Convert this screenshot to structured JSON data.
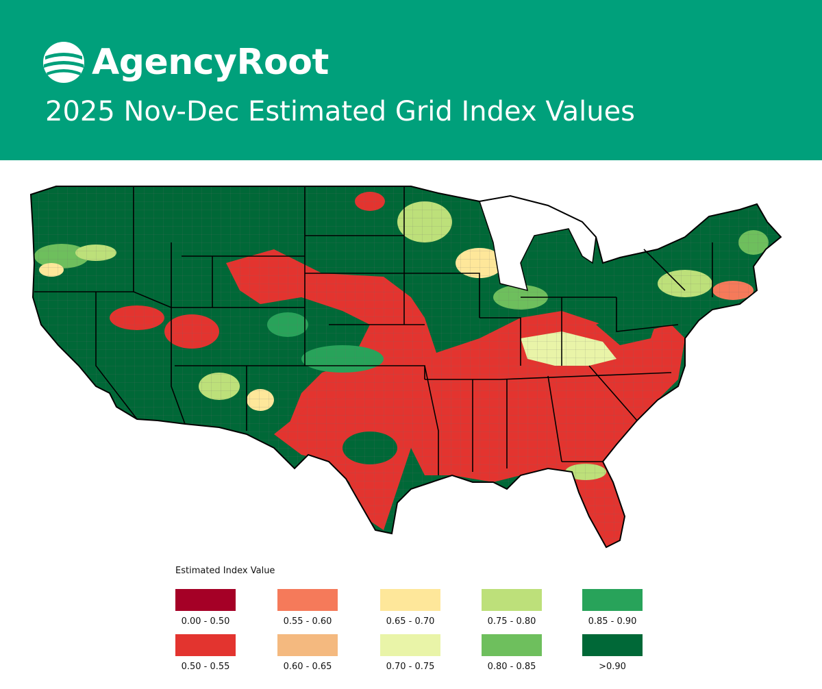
{
  "header": {
    "brand": "AgencyRoot",
    "title": "2025 Nov-Dec Estimated Grid Index Values",
    "brand_color": "#00a07b"
  },
  "map": {
    "region": "contiguous-united-states",
    "boundaries": [
      "state-borders",
      "county-borders"
    ],
    "predominant_low_index_areas": [
      "Texas",
      "Oklahoma",
      "Kansas",
      "Arkansas",
      "Louisiana",
      "Mississippi",
      "Alabama",
      "Georgia",
      "South Carolina",
      "Florida",
      "Tennessee",
      "Missouri",
      "Virginia",
      "North Carolina"
    ],
    "predominant_high_index_areas": [
      "Washington",
      "Oregon",
      "California",
      "Nevada",
      "Idaho",
      "Montana",
      "Minnesota",
      "New York",
      "Maine"
    ]
  },
  "legend": {
    "title": "Estimated Index Value",
    "items": [
      {
        "label": "0.00 - 0.50",
        "color": "#a50026"
      },
      {
        "label": "0.55 - 0.60",
        "color": "#f57a5a"
      },
      {
        "label": "0.65 - 0.70",
        "color": "#fee79a"
      },
      {
        "label": "0.75 - 0.80",
        "color": "#bde07a"
      },
      {
        "label": "0.85 - 0.90",
        "color": "#28a35a"
      },
      {
        "label": "0.50 - 0.55",
        "color": "#e3342f"
      },
      {
        "label": "0.60 - 0.65",
        "color": "#f4b97f"
      },
      {
        "label": "0.70 - 0.75",
        "color": "#e9f4a8"
      },
      {
        "label": "0.80 - 0.85",
        "color": "#6ebf5d"
      },
      {
        "label": ">0.90",
        "color": "#006837"
      }
    ]
  }
}
